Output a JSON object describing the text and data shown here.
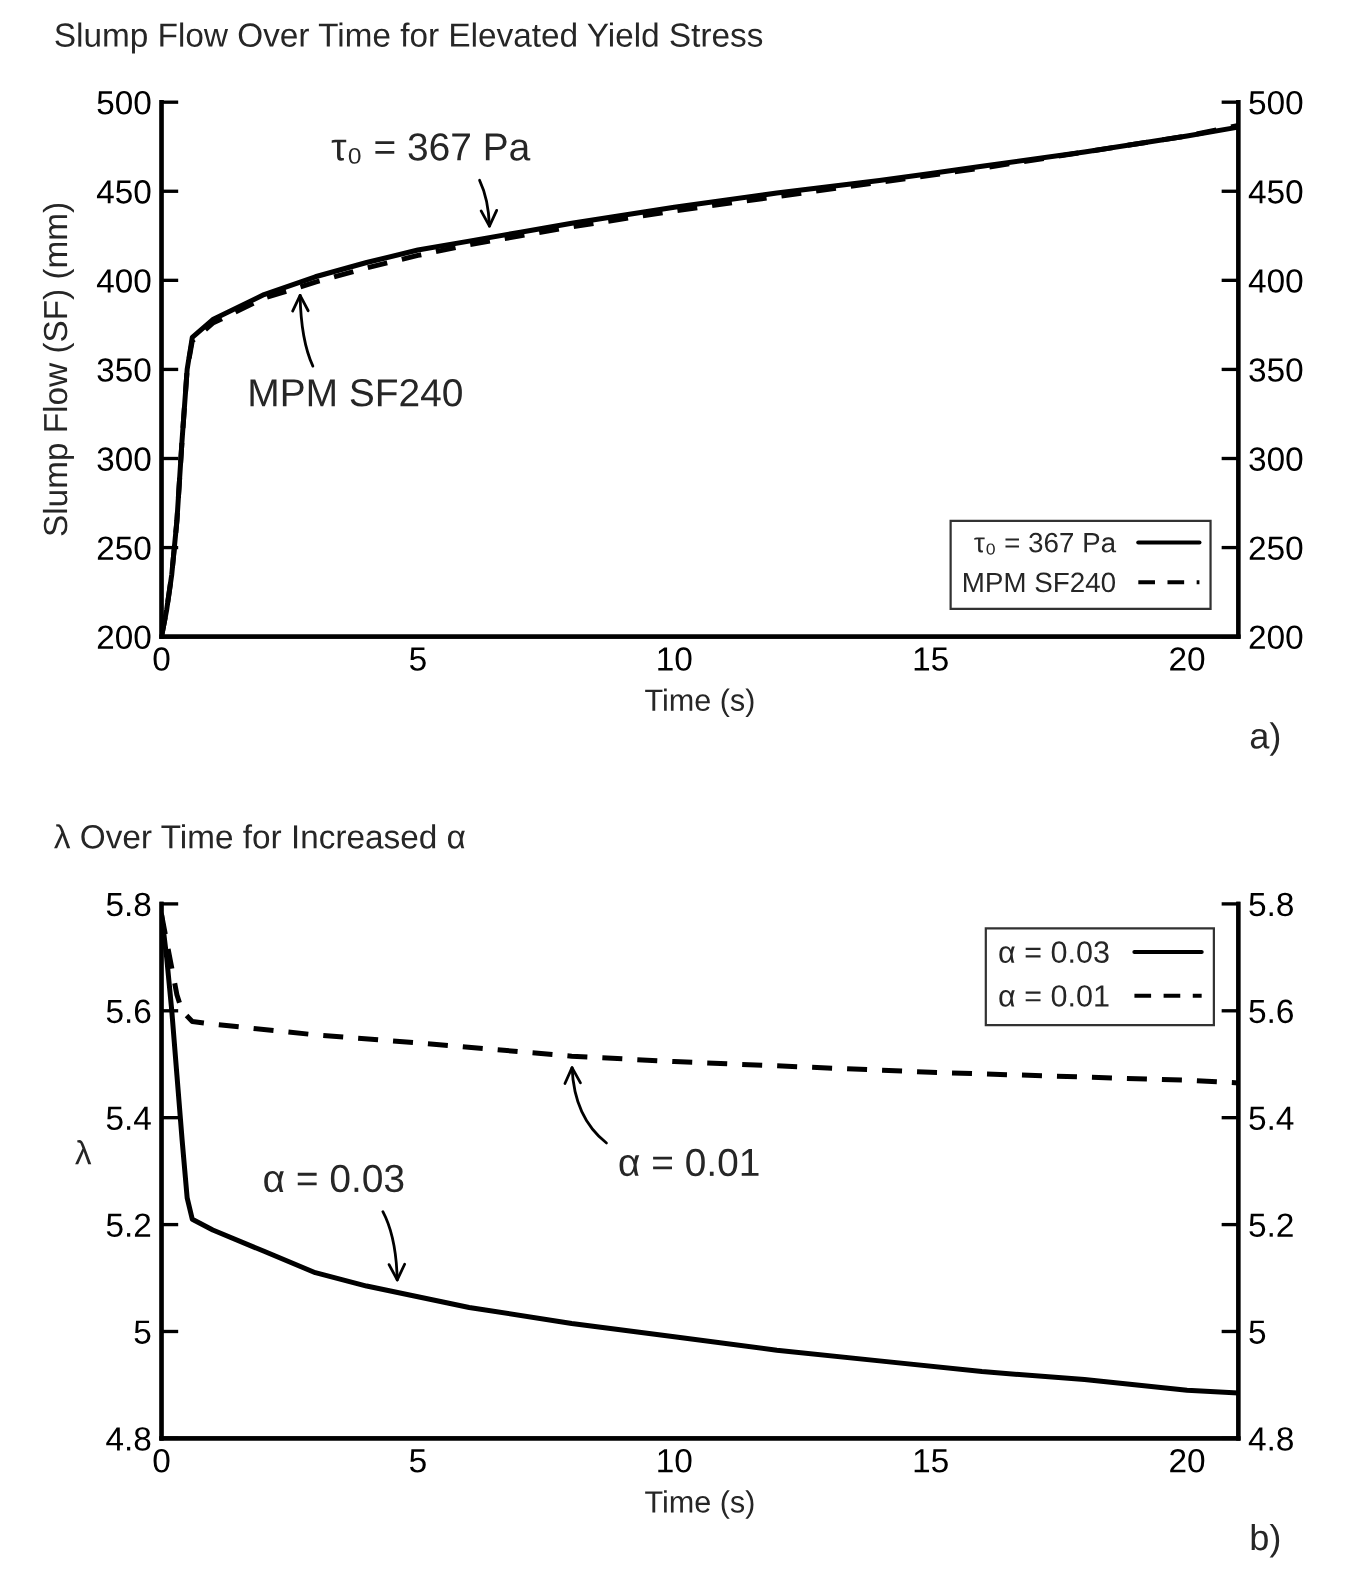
{
  "chart_data": [
    {
      "type": "line",
      "title": "Slump Flow Over Time for Elevated Yield Stress",
      "xlabel": "Time (s)",
      "ylabel": "Slump Flow (SF) (mm)",
      "xlim": [
        0,
        21
      ],
      "xticks": [
        0,
        5,
        10,
        15,
        20
      ],
      "ylim": [
        200,
        500
      ],
      "yticks": [
        200,
        250,
        300,
        350,
        400,
        450,
        500
      ],
      "y2lim": [
        200,
        500
      ],
      "y2ticks": [
        200,
        250,
        300,
        350,
        400,
        450,
        500
      ],
      "grid": false,
      "legend": "bottom right",
      "series": [
        {
          "name": "τ₀ = 367 Pa",
          "color": "#000000",
          "line_style": "solid",
          "x": [
            0,
            0.1,
            0.2,
            0.3,
            0.4,
            0.5,
            0.6,
            1,
            2,
            3,
            4,
            5,
            6,
            7,
            8,
            10,
            12,
            14,
            15,
            16,
            18,
            20,
            21
          ],
          "values": [
            200,
            215,
            235,
            265,
            310,
            350,
            368,
            378,
            392,
            402,
            410,
            417,
            422,
            427,
            432,
            441,
            449,
            456,
            460,
            464,
            472,
            481,
            486
          ]
        },
        {
          "name": "MPM SF240",
          "color": "#000000",
          "line_style": "dashed",
          "x": [
            0,
            0.1,
            0.2,
            0.3,
            0.4,
            0.5,
            0.6,
            1,
            2,
            3,
            4,
            5,
            6,
            7,
            8,
            10,
            12,
            14,
            15,
            16,
            18,
            20,
            21
          ],
          "values": [
            200,
            215,
            235,
            265,
            310,
            350,
            366,
            376,
            390,
            399,
            407,
            414,
            420,
            425,
            430,
            439,
            447,
            455,
            459,
            463,
            472,
            481,
            487
          ]
        }
      ],
      "annotations": [
        {
          "text": "τ₀ = 367 Pa",
          "x": 6.4,
          "y": 424
        },
        {
          "text": "MPM SF240",
          "x": 2.7,
          "y": 398
        },
        "a)"
      ]
    },
    {
      "type": "line",
      "title": "λ Over Time for Increased α",
      "xlabel": "Time (s)",
      "ylabel": "λ",
      "xlim": [
        0,
        21
      ],
      "xticks": [
        0,
        5,
        10,
        15,
        20
      ],
      "ylim": [
        4.8,
        5.8
      ],
      "yticks": [
        4.8,
        5,
        5.2,
        5.4,
        5.6,
        5.8
      ],
      "y2lim": [
        4.8,
        5.8
      ],
      "y2ticks": [
        4.8,
        5,
        5.2,
        5.4,
        5.6,
        5.8
      ],
      "grid": false,
      "legend": "top right",
      "series": [
        {
          "name": "α = 0.03",
          "color": "#000000",
          "line_style": "solid",
          "x": [
            0,
            0.1,
            0.2,
            0.3,
            0.4,
            0.5,
            0.6,
            1,
            2,
            3,
            4,
            5,
            6,
            8,
            10,
            12,
            14,
            16,
            18,
            20,
            21
          ],
          "values": [
            5.78,
            5.7,
            5.6,
            5.48,
            5.36,
            5.25,
            5.21,
            5.19,
            5.15,
            5.11,
            5.085,
            5.065,
            5.045,
            5.015,
            4.99,
            4.965,
            4.945,
            4.925,
            4.91,
            4.89,
            4.885
          ]
        },
        {
          "name": "α = 0.01",
          "color": "#000000",
          "line_style": "dashed",
          "x": [
            0,
            0.1,
            0.2,
            0.3,
            0.4,
            0.6,
            1,
            3,
            5,
            8,
            10,
            15,
            20,
            21
          ],
          "values": [
            5.78,
            5.73,
            5.68,
            5.63,
            5.6,
            5.58,
            5.575,
            5.555,
            5.54,
            5.515,
            5.505,
            5.485,
            5.47,
            5.465
          ]
        }
      ],
      "annotations": [
        {
          "text": "α = 0.03",
          "x": 4.6,
          "y": 5.075
        },
        {
          "text": "α = 0.01",
          "x": 8.0,
          "y": 5.515
        },
        "b)"
      ]
    }
  ]
}
